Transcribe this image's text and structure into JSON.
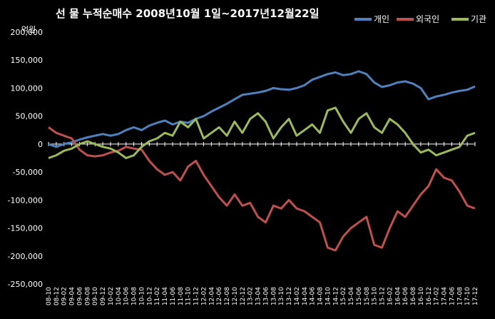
{
  "chart_data": {
    "type": "line",
    "title": "선 물 누적순매수 2008년10월 1일~2017년12월22일",
    "unit_label": "억원",
    "ylim": [
      -250000,
      200000
    ],
    "yticks": [
      200000,
      150000,
      100000,
      50000,
      0,
      -50000,
      -100000,
      -150000,
      -200000,
      -250000
    ],
    "ytick_labels": [
      "200,000",
      "150,000",
      "100,000",
      "50,000",
      "0",
      "-50,000",
      "-100,000",
      "-150,000",
      "-200,000",
      "-250,000"
    ],
    "categories": [
      "08-10",
      "08-12",
      "09-02",
      "09-04",
      "09-06",
      "09-08",
      "09-10",
      "09-12",
      "10-02",
      "10-04",
      "10-06",
      "10-08",
      "10-10",
      "10-12",
      "11-02",
      "11-04",
      "11-06",
      "11-08",
      "11-10",
      "11-12",
      "12-02",
      "12-04",
      "12-06",
      "12-08",
      "12-10",
      "12-12",
      "13-02",
      "13-04",
      "13-06",
      "13-08",
      "13-10",
      "13-12",
      "14-02",
      "14-04",
      "14-06",
      "14-08",
      "14-10",
      "14-12",
      "15-02",
      "15-04",
      "15-06",
      "15-08",
      "15-10",
      "15-12",
      "16-02",
      "16-04",
      "16-06",
      "16-08",
      "16-10",
      "16-12",
      "17-02",
      "17-04",
      "17-06",
      "17-08",
      "17-10",
      "17-12"
    ],
    "grid": false,
    "legend_position": "top-right",
    "series": [
      {
        "name": "개인",
        "color": "#4f81bd",
        "values": [
          0,
          -5000,
          0,
          3000,
          8000,
          12000,
          15000,
          18000,
          15000,
          18000,
          25000,
          30000,
          25000,
          33000,
          38000,
          42000,
          35000,
          40000,
          38000,
          45000,
          50000,
          58000,
          65000,
          72000,
          80000,
          88000,
          90000,
          92000,
          95000,
          100000,
          98000,
          97000,
          100000,
          105000,
          115000,
          120000,
          125000,
          128000,
          123000,
          125000,
          130000,
          125000,
          110000,
          102000,
          105000,
          110000,
          112000,
          108000,
          100000,
          80000,
          85000,
          88000,
          92000,
          95000,
          97000,
          103000
        ]
      },
      {
        "name": "외국인",
        "color": "#c0504d",
        "values": [
          30000,
          20000,
          15000,
          10000,
          -10000,
          -20000,
          -22000,
          -20000,
          -15000,
          -12000,
          -5000,
          -8000,
          -10000,
          -30000,
          -45000,
          -55000,
          -50000,
          -65000,
          -40000,
          -30000,
          -55000,
          -75000,
          -95000,
          -110000,
          -90000,
          -110000,
          -105000,
          -130000,
          -140000,
          -110000,
          -115000,
          -100000,
          -115000,
          -120000,
          -130000,
          -140000,
          -185000,
          -190000,
          -165000,
          -150000,
          -140000,
          -130000,
          -180000,
          -185000,
          -150000,
          -120000,
          -130000,
          -110000,
          -90000,
          -75000,
          -45000,
          -60000,
          -65000,
          -85000,
          -110000,
          -115000
        ]
      },
      {
        "name": "기관",
        "color": "#9bbb59",
        "values": [
          -25000,
          -20000,
          -12000,
          -8000,
          0,
          5000,
          0,
          -5000,
          -8000,
          -15000,
          -25000,
          -20000,
          -5000,
          5000,
          10000,
          20000,
          15000,
          40000,
          30000,
          45000,
          10000,
          20000,
          30000,
          15000,
          40000,
          20000,
          45000,
          55000,
          40000,
          10000,
          30000,
          45000,
          15000,
          25000,
          35000,
          20000,
          60000,
          65000,
          40000,
          20000,
          45000,
          55000,
          30000,
          20000,
          45000,
          35000,
          20000,
          0,
          -15000,
          -10000,
          -20000,
          -15000,
          -10000,
          -5000,
          15000,
          20000
        ]
      }
    ]
  }
}
